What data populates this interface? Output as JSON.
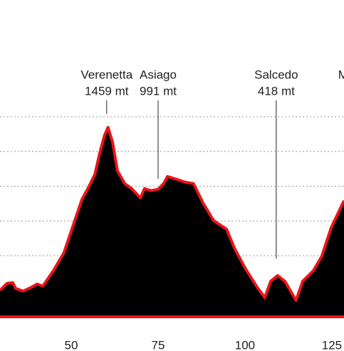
{
  "chart_data": {
    "type": "area",
    "x": [
      29.5,
      31.5,
      33.2,
      34.0,
      36.1,
      38.7,
      40.2,
      41.8,
      44.9,
      47.9,
      51.0,
      53.1,
      55.1,
      56.8,
      58.2,
      59.6,
      60.6,
      61.9,
      63.3,
      65.4,
      67.4,
      69.9,
      71.1,
      73.0,
      75.0,
      76.6,
      77.7,
      80.3,
      82.8,
      85.2,
      87.9,
      91.0,
      94.7,
      97.1,
      100.2,
      103.3,
      105.7,
      107.4,
      109.4,
      111.5,
      113.5,
      114.7,
      116.6,
      119.7,
      122.1,
      124.8,
      128.5
    ],
    "values": [
      250,
      301,
      306,
      265,
      245,
      275,
      296,
      281,
      393,
      522,
      752,
      906,
      998,
      1086,
      1239,
      1368,
      1424,
      1316,
      1111,
      1019,
      983,
      916,
      983,
      968,
      978,
      1019,
      1070,
      1050,
      1029,
      1019,
      881,
      752,
      691,
      547,
      404,
      281,
      198,
      316,
      357,
      316,
      229,
      178,
      316,
      393,
      496,
      701,
      896
    ],
    "fill": "#000000",
    "line_color": "#e8141a",
    "xlim": [
      29.5,
      128.5
    ],
    "xticks": [
      50,
      75,
      100,
      125
    ],
    "ylim": [
      60,
      2340
    ],
    "yticks": [
      500,
      750,
      1000,
      1250,
      1500
    ],
    "grid": true,
    "annotations": [
      {
        "x": 60.2,
        "name": "Verenetta",
        "label": "1459 mt",
        "value": 1459
      },
      {
        "x": 75.0,
        "name": "Asiago",
        "label": "991 mt",
        "value": 991
      },
      {
        "x": 109.0,
        "name": "Salcedo",
        "label": "418 mt",
        "value": 418
      },
      {
        "x": 126.8,
        "name": "Mo"
      }
    ]
  }
}
